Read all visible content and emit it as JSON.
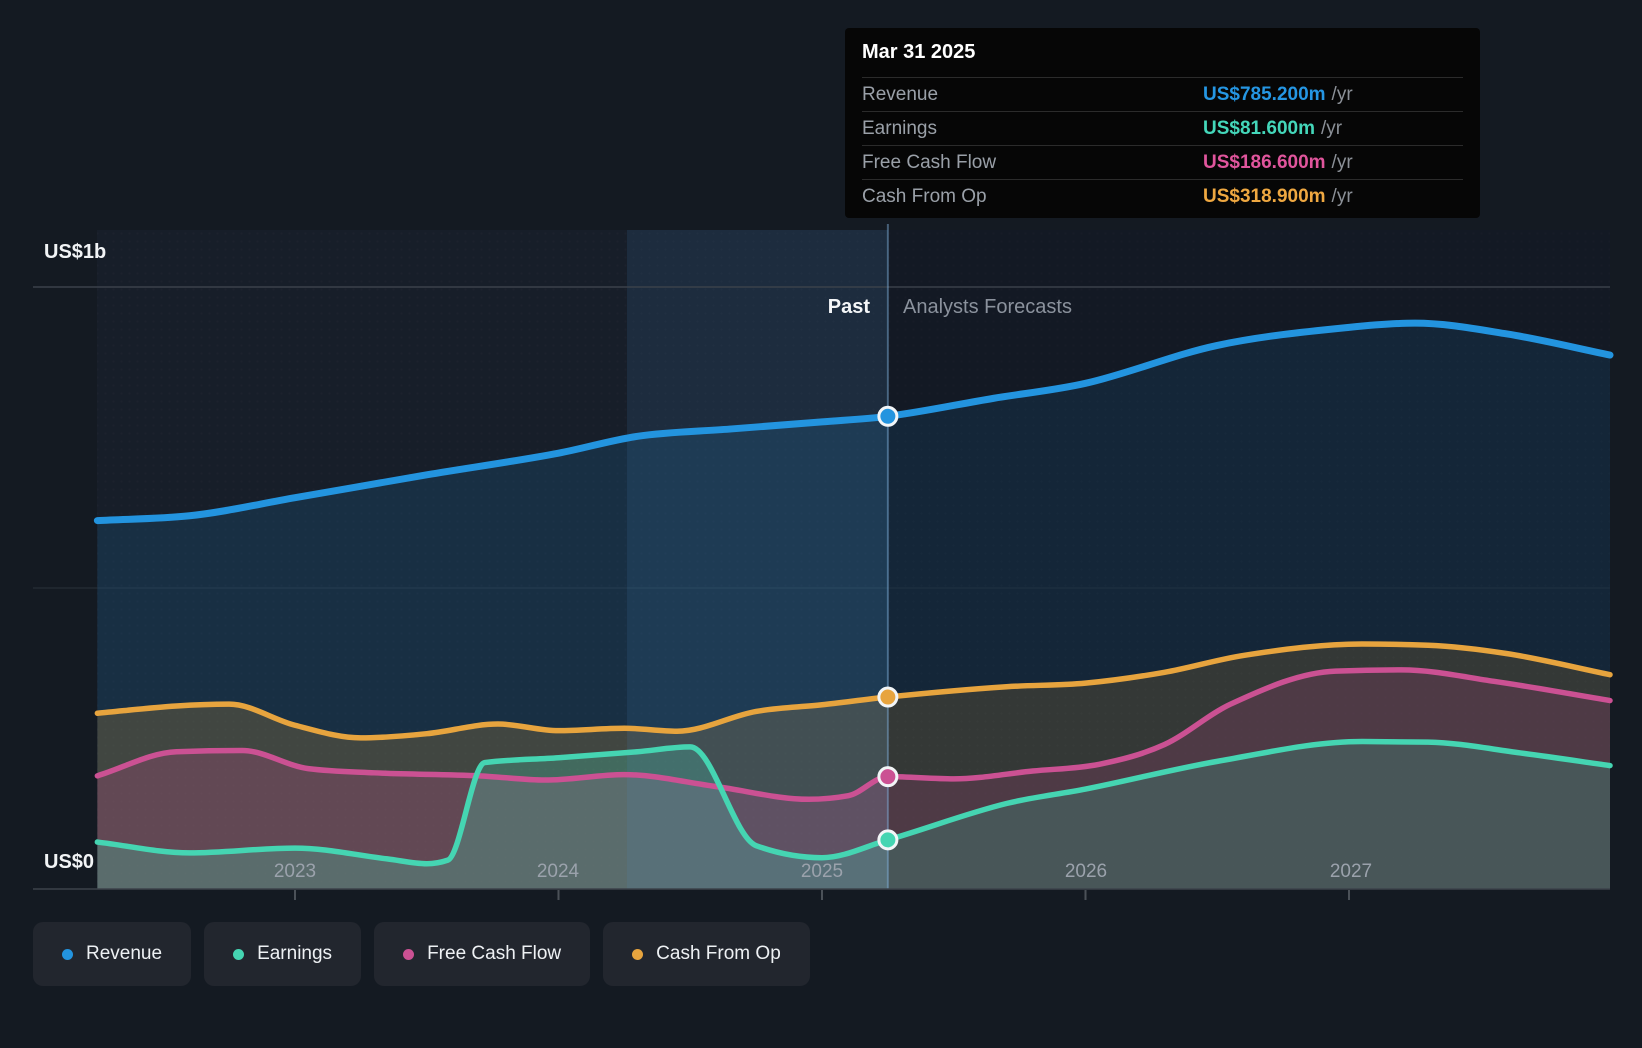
{
  "tooltip": {
    "date": "Mar 31 2025",
    "rows": [
      {
        "label": "Revenue",
        "value": "US$785.200m",
        "unit": "/yr",
        "color": "#2596e3"
      },
      {
        "label": "Earnings",
        "value": "US$81.600m",
        "unit": "/yr",
        "color": "#44d7ba"
      },
      {
        "label": "Free Cash Flow",
        "value": "US$186.600m",
        "unit": "/yr",
        "color": "#e0559c"
      },
      {
        "label": "Cash From Op",
        "value": "US$318.900m",
        "unit": "/yr",
        "color": "#efa841"
      }
    ]
  },
  "axis": {
    "y_top": "US$1b",
    "y_bottom": "US$0",
    "years": [
      "2023",
      "2024",
      "2025",
      "2026",
      "2027"
    ]
  },
  "sections": {
    "past": "Past",
    "forecast": "Analysts Forecasts"
  },
  "legend": [
    {
      "label": "Revenue",
      "color": "#2394df"
    },
    {
      "label": "Earnings",
      "color": "#45d5b2"
    },
    {
      "label": "Free Cash Flow",
      "color": "#cb5193"
    },
    {
      "label": "Cash From Op",
      "color": "#e7a43e"
    }
  ],
  "chart_data": {
    "type": "area",
    "title": "Revenue, Earnings, Free Cash Flow and Cash From Op — past and analysts forecasts",
    "x_unit": "calendar year (fractional)",
    "y_unit": "US$ millions",
    "x_range": [
      2022.25,
      2028.0
    ],
    "ylim": [
      0,
      1000
    ],
    "y_gridlines": [
      0,
      500,
      1000
    ],
    "divider_x": 2025.25,
    "divider_label_left": "Past",
    "divider_label_right": "Analysts Forecasts",
    "highlight_band_x": [
      2024.26,
      2025.25
    ],
    "legend_position": "bottom-left",
    "marker_date": "Mar 31 2025",
    "series": [
      {
        "name": "Revenue",
        "color": "#2394df",
        "marker_value": 785.2,
        "points": [
          [
            2022.25,
            612
          ],
          [
            2022.6,
            620
          ],
          [
            2023.0,
            650
          ],
          [
            2023.5,
            688
          ],
          [
            2024.0,
            724
          ],
          [
            2024.3,
            752
          ],
          [
            2024.65,
            764
          ],
          [
            2025.0,
            776
          ],
          [
            2025.25,
            785.2
          ],
          [
            2025.65,
            815
          ],
          [
            2026.0,
            840
          ],
          [
            2026.5,
            903
          ],
          [
            2027.0,
            933
          ],
          [
            2027.25,
            940
          ],
          [
            2027.6,
            922
          ],
          [
            2028.0,
            887
          ]
        ]
      },
      {
        "name": "Cash From Op",
        "color": "#e7a43e",
        "marker_value": 318.9,
        "points": [
          [
            2022.25,
            292
          ],
          [
            2022.55,
            304
          ],
          [
            2022.75,
            307
          ],
          [
            2023.0,
            272
          ],
          [
            2023.25,
            251
          ],
          [
            2023.5,
            258
          ],
          [
            2023.77,
            274
          ],
          [
            2024.0,
            263
          ],
          [
            2024.25,
            267
          ],
          [
            2024.45,
            262
          ],
          [
            2024.75,
            295
          ],
          [
            2025.0,
            306
          ],
          [
            2025.25,
            318.9
          ],
          [
            2025.7,
            336
          ],
          [
            2026.0,
            342
          ],
          [
            2026.3,
            360
          ],
          [
            2026.6,
            388
          ],
          [
            2027.05,
            407
          ],
          [
            2027.3,
            405
          ],
          [
            2027.6,
            391
          ],
          [
            2028.0,
            356
          ]
        ]
      },
      {
        "name": "Free Cash Flow",
        "color": "#cb5193",
        "marker_value": 186.6,
        "points": [
          [
            2022.25,
            188
          ],
          [
            2022.55,
            228
          ],
          [
            2022.8,
            230
          ],
          [
            2023.05,
            200
          ],
          [
            2023.3,
            193
          ],
          [
            2023.7,
            188
          ],
          [
            2023.95,
            181
          ],
          [
            2024.25,
            190
          ],
          [
            2024.6,
            170
          ],
          [
            2024.95,
            149
          ],
          [
            2025.1,
            155
          ],
          [
            2025.25,
            186.6
          ],
          [
            2025.5,
            183
          ],
          [
            2025.8,
            196
          ],
          [
            2026.05,
            207
          ],
          [
            2026.3,
            240
          ],
          [
            2026.55,
            307
          ],
          [
            2026.95,
            362
          ],
          [
            2027.2,
            364
          ],
          [
            2027.55,
            345
          ],
          [
            2028.0,
            313
          ]
        ]
      },
      {
        "name": "Earnings",
        "color": "#45d5b2",
        "marker_value": 81.6,
        "points": [
          [
            2022.25,
            78
          ],
          [
            2022.6,
            60
          ],
          [
            2023.0,
            68
          ],
          [
            2023.35,
            50
          ],
          [
            2023.5,
            42
          ],
          [
            2023.58,
            48
          ],
          [
            2023.72,
            210
          ],
          [
            2024.0,
            218
          ],
          [
            2024.3,
            228
          ],
          [
            2024.5,
            236
          ],
          [
            2024.75,
            72
          ],
          [
            2025.0,
            52
          ],
          [
            2025.25,
            81.6
          ],
          [
            2025.7,
            142
          ],
          [
            2026.0,
            166
          ],
          [
            2026.5,
            212
          ],
          [
            2027.05,
            245
          ],
          [
            2027.3,
            244
          ],
          [
            2027.65,
            226
          ],
          [
            2028.0,
            205
          ]
        ]
      }
    ]
  }
}
